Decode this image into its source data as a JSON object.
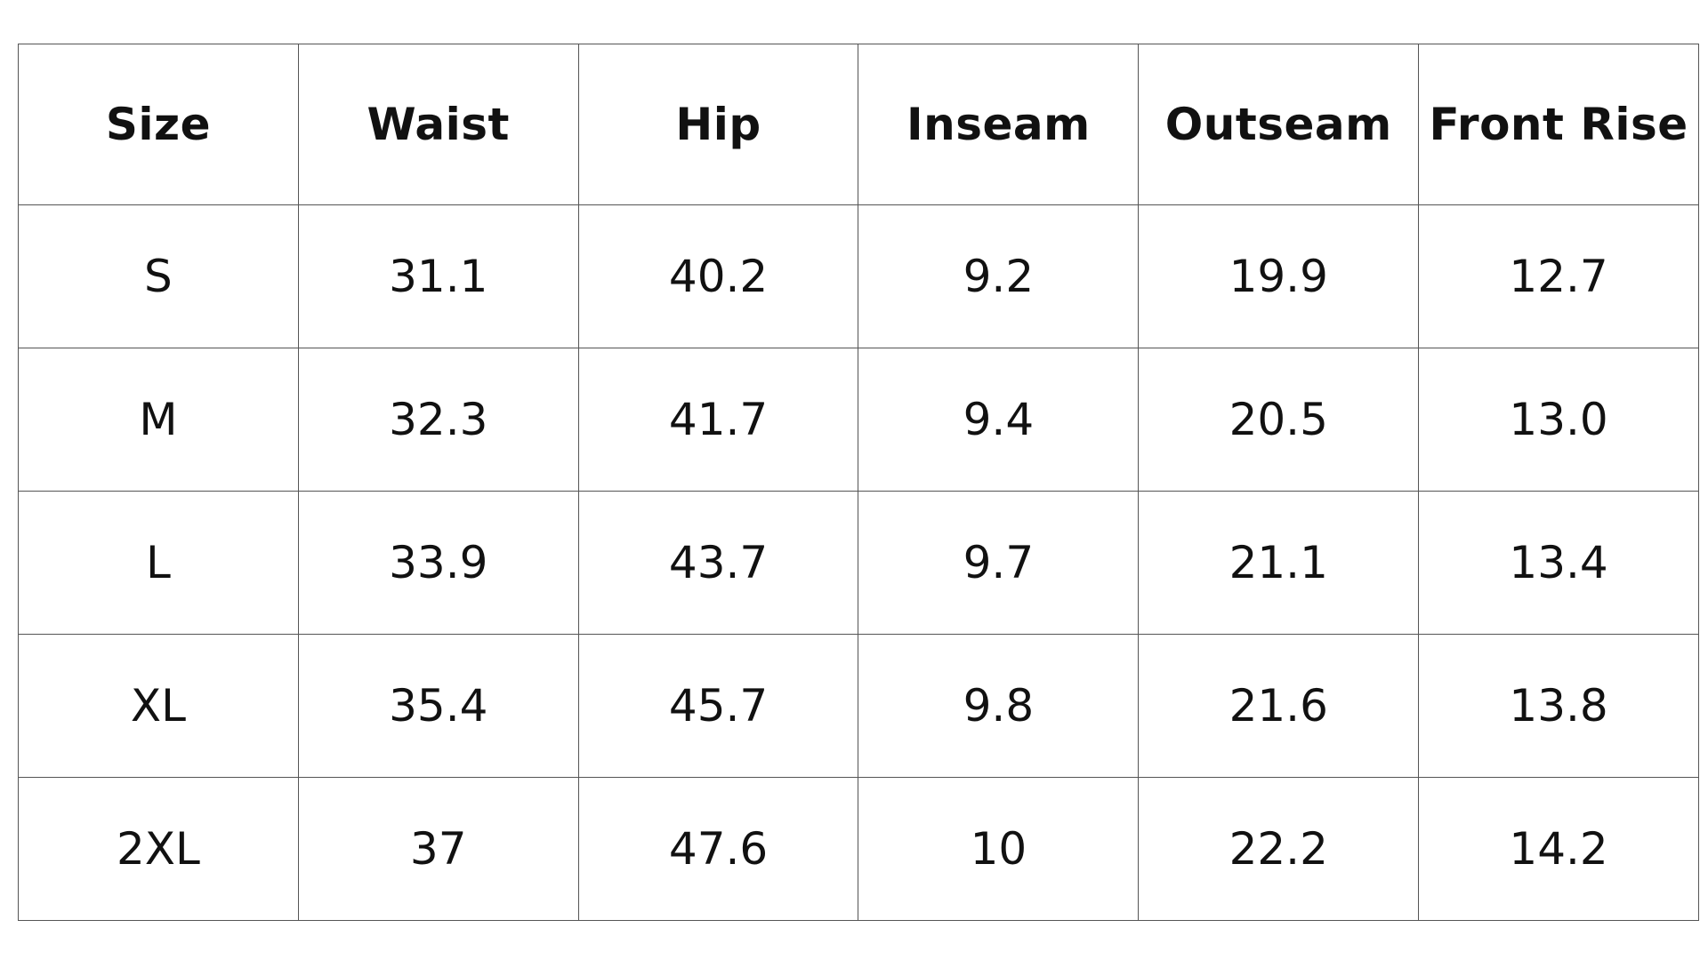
{
  "table": {
    "headers": [
      "Size",
      "Waist",
      "Hip",
      "Inseam",
      "Outseam",
      "Front Rise"
    ],
    "rows": [
      [
        "S",
        "31.1",
        "40.2",
        "9.2",
        "19.9",
        "12.7"
      ],
      [
        "M",
        "32.3",
        "41.7",
        "9.4",
        "20.5",
        "13.0"
      ],
      [
        "L",
        "33.9",
        "43.7",
        "9.7",
        "21.1",
        "13.4"
      ],
      [
        "XL",
        "35.4",
        "45.7",
        "9.8",
        "21.6",
        "13.8"
      ],
      [
        "2XL",
        "37",
        "47.6",
        "10",
        "22.2",
        "14.2"
      ]
    ]
  },
  "colors": {
    "text": "#111111",
    "border": "#555555",
    "background": "#ffffff"
  }
}
